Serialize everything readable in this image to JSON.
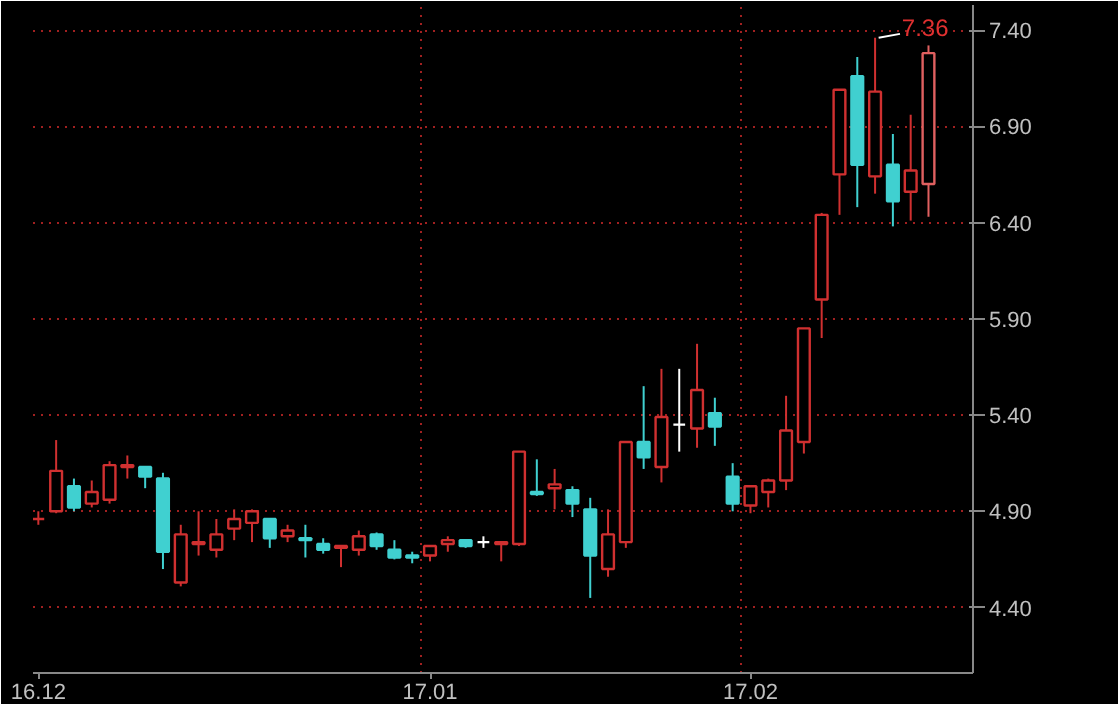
{
  "chart_data": {
    "type": "candlestick",
    "categories": [
      "16.12",
      null,
      null,
      null,
      null,
      null,
      null,
      null,
      null,
      null,
      null,
      null,
      null,
      null,
      null,
      null,
      null,
      null,
      null,
      null,
      null,
      null,
      "17.01",
      null,
      null,
      null,
      null,
      null,
      null,
      null,
      null,
      null,
      null,
      null,
      null,
      null,
      null,
      null,
      null,
      null,
      "17.02",
      null,
      null,
      null,
      null,
      null,
      null,
      null,
      null,
      null,
      null
    ],
    "ohlc": [
      [
        4.86,
        4.9,
        4.83,
        4.86
      ],
      [
        4.9,
        5.27,
        4.89,
        5.11
      ],
      [
        5.03,
        5.07,
        4.9,
        4.92
      ],
      [
        4.94,
        5.06,
        4.92,
        5.0
      ],
      [
        4.96,
        5.16,
        4.94,
        5.14
      ],
      [
        5.13,
        5.19,
        5.07,
        5.14
      ],
      [
        5.13,
        5.13,
        5.02,
        5.08
      ],
      [
        5.07,
        5.1,
        4.6,
        4.69
      ],
      [
        4.53,
        4.83,
        4.51,
        4.78
      ],
      [
        4.73,
        4.9,
        4.67,
        4.74
      ],
      [
        4.7,
        4.86,
        4.66,
        4.78
      ],
      [
        4.81,
        4.91,
        4.75,
        4.86
      ],
      [
        4.84,
        4.91,
        4.74,
        4.9
      ],
      [
        4.86,
        4.86,
        4.71,
        4.76
      ],
      [
        4.77,
        4.83,
        4.74,
        4.8
      ],
      [
        4.76,
        4.83,
        4.66,
        4.75
      ],
      [
        4.73,
        4.76,
        4.68,
        4.7
      ],
      [
        4.71,
        4.72,
        4.61,
        4.72
      ],
      [
        4.7,
        4.8,
        4.67,
        4.77
      ],
      [
        4.78,
        4.79,
        4.7,
        4.72
      ],
      [
        4.7,
        4.75,
        4.65,
        4.66
      ],
      [
        4.67,
        4.69,
        4.63,
        4.66
      ],
      [
        4.67,
        4.72,
        4.64,
        4.72
      ],
      [
        4.73,
        4.77,
        4.69,
        4.75
      ],
      [
        4.75,
        4.75,
        4.71,
        4.72
      ],
      [
        4.74,
        4.77,
        4.71,
        4.74
      ],
      [
        4.73,
        4.74,
        4.64,
        4.74
      ],
      [
        4.73,
        5.21,
        4.72,
        5.21
      ],
      [
        5.0,
        5.17,
        4.98,
        4.99
      ],
      [
        5.02,
        5.12,
        4.91,
        5.04
      ],
      [
        5.01,
        5.03,
        4.87,
        4.94
      ],
      [
        4.91,
        4.97,
        4.45,
        4.67
      ],
      [
        4.6,
        4.91,
        4.56,
        4.78
      ],
      [
        4.74,
        5.26,
        4.71,
        5.26
      ],
      [
        5.26,
        5.55,
        5.12,
        5.18
      ],
      [
        5.13,
        5.64,
        5.05,
        5.39
      ],
      [
        5.35,
        5.64,
        5.21,
        5.35
      ],
      [
        5.33,
        5.77,
        5.23,
        5.53
      ],
      [
        5.41,
        5.49,
        5.24,
        5.34
      ],
      [
        5.08,
        5.15,
        4.9,
        4.94
      ],
      [
        4.93,
        5.03,
        4.89,
        5.03
      ],
      [
        5.0,
        5.07,
        4.92,
        5.06
      ],
      [
        5.06,
        5.5,
        5.01,
        5.32
      ],
      [
        5.26,
        5.85,
        5.2,
        5.85
      ],
      [
        6.0,
        6.45,
        5.8,
        6.44
      ],
      [
        6.65,
        7.09,
        6.44,
        7.09
      ],
      [
        7.16,
        7.26,
        6.48,
        6.7
      ],
      [
        6.64,
        7.36,
        6.55,
        7.08
      ],
      [
        6.7,
        6.86,
        6.38,
        6.51
      ],
      [
        6.56,
        6.96,
        6.41,
        6.67
      ],
      [
        6.6,
        7.32,
        6.43,
        7.28
      ]
    ],
    "colors": [
      "#d03030",
      "#d03030",
      "#40d0d0",
      "#d03030",
      "#d03030",
      "#d03030",
      "#40d0d0",
      "#40d0d0",
      "#d03030",
      "#d03030",
      "#d03030",
      "#d03030",
      "#d03030",
      "#40d0d0",
      "#d03030",
      "#40d0d0",
      "#40d0d0",
      "#d03030",
      "#d03030",
      "#40d0d0",
      "#40d0d0",
      "#40d0d0",
      "#d03030",
      "#d03030",
      "#40d0d0",
      "#ffffff",
      "#d03030",
      "#d03030",
      "#40d0d0",
      "#d03030",
      "#40d0d0",
      "#40d0d0",
      "#d03030",
      "#d03030",
      "#40d0d0",
      "#d03030",
      "#ffffff",
      "#d03030",
      "#40d0d0",
      "#40d0d0",
      "#d03030",
      "#d03030",
      "#d03030",
      "#d03030",
      "#d03030",
      "#d03030",
      "#40d0d0",
      "#d03030",
      "#40d0d0",
      "#d03030",
      "#e06060"
    ],
    "ylim": [
      4.06,
      7.53
    ],
    "yticks": [
      {
        "value": 4.4,
        "label": "4.40"
      },
      {
        "value": 4.9,
        "label": "4.90"
      },
      {
        "value": 5.4,
        "label": "5.40"
      },
      {
        "value": 5.9,
        "label": "5.90"
      },
      {
        "value": 6.4,
        "label": "6.40"
      },
      {
        "value": 6.9,
        "label": "6.90"
      },
      {
        "value": 7.4,
        "label": "7.40"
      }
    ],
    "grid": true,
    "annotations": [
      "7.36"
    ]
  }
}
